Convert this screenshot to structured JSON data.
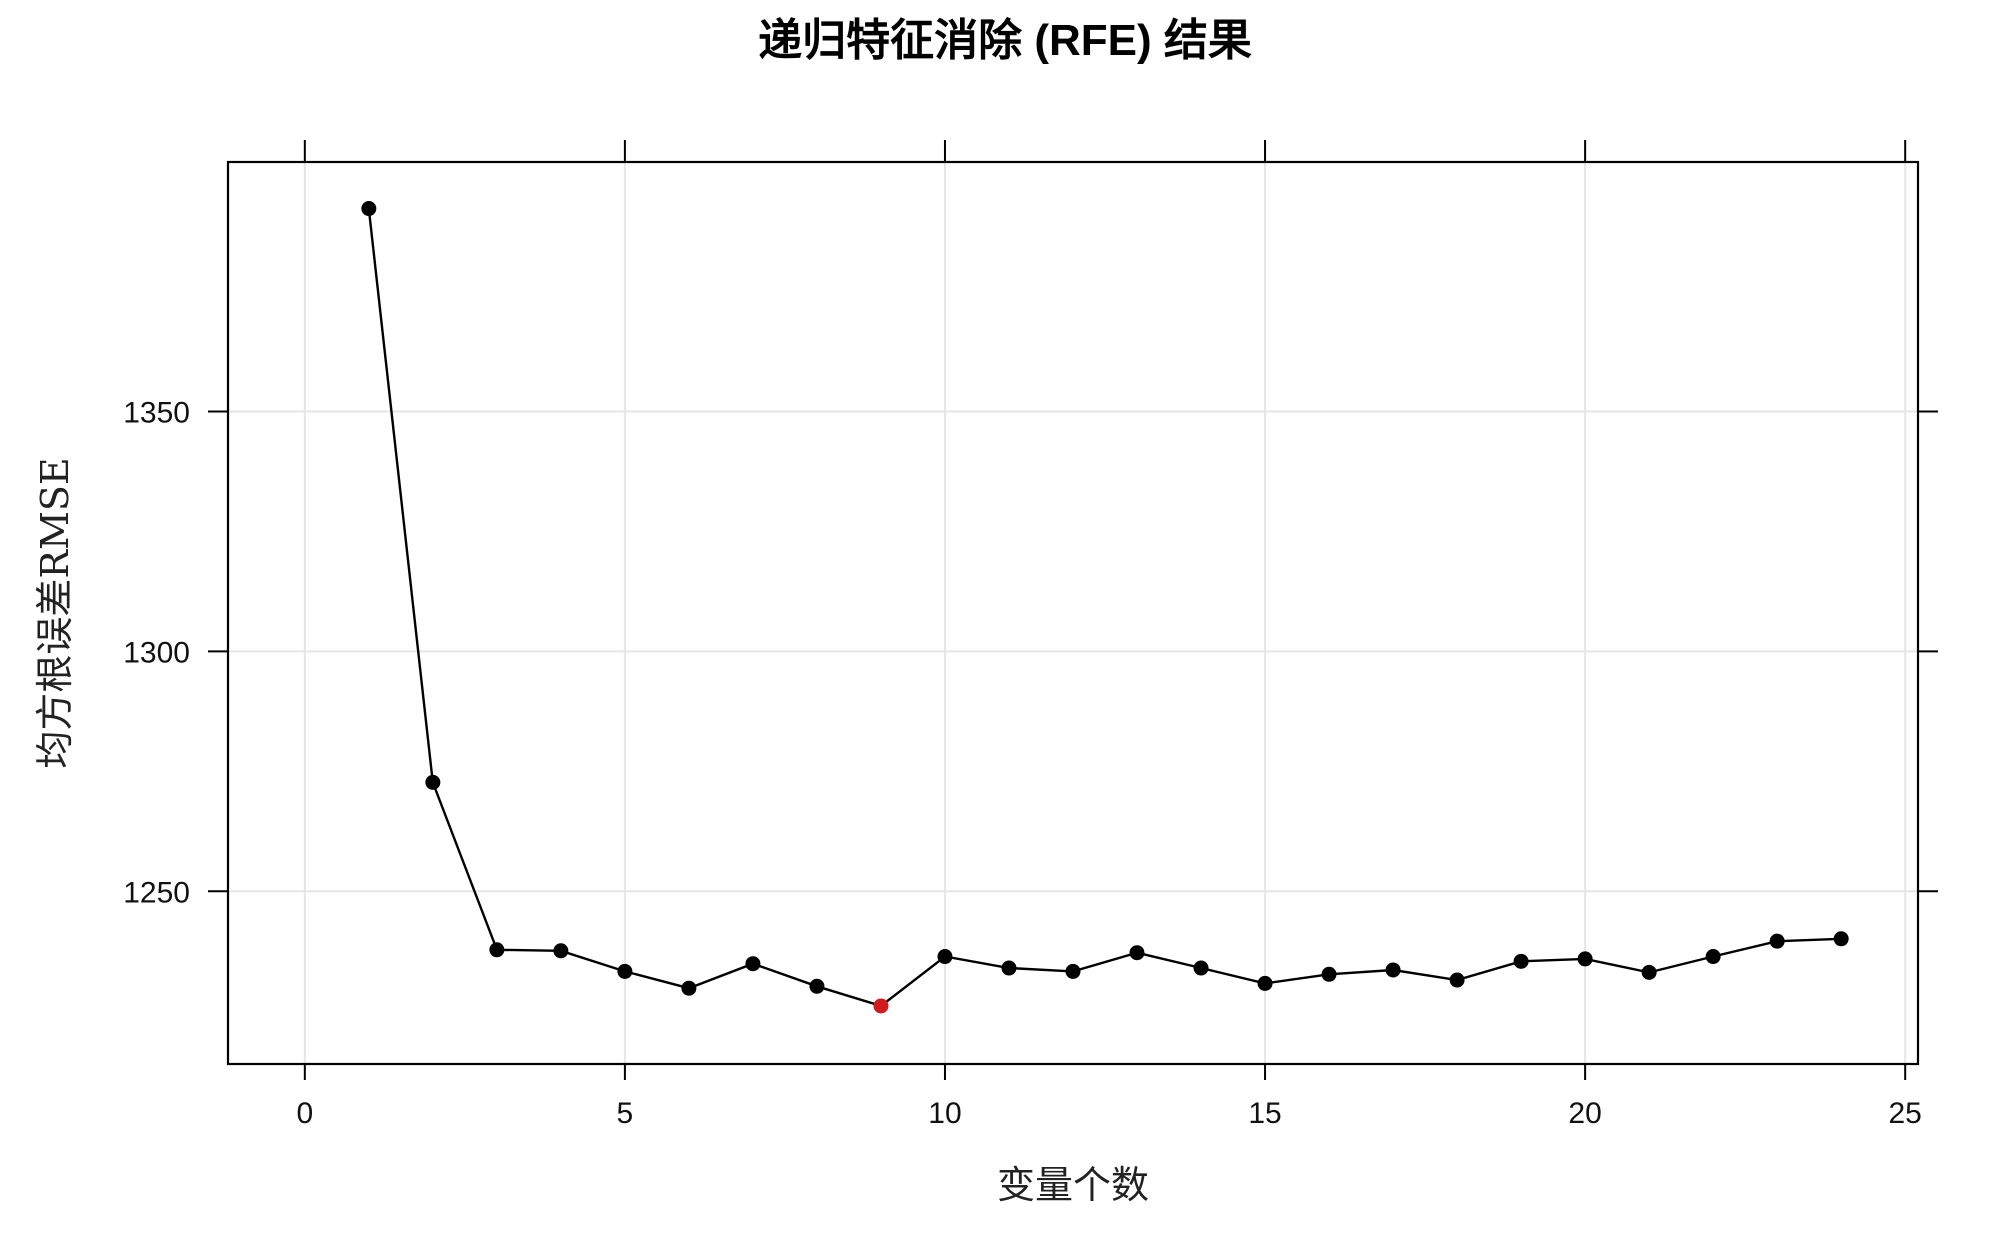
{
  "chart_data": {
    "type": "line",
    "title": "递归特征消除 (RFE) 结果",
    "xlabel": "变量个数",
    "ylabel": "均方根误差RMSE",
    "xlim": [
      -1.2,
      25.2
    ],
    "ylim": [
      1214,
      1402
    ],
    "xticks": [
      0,
      5,
      10,
      15,
      20,
      25
    ],
    "yticks": [
      1250,
      1300,
      1350
    ],
    "grid": true,
    "series": [
      {
        "x": [
          1,
          2,
          3,
          4,
          5,
          6,
          7,
          8,
          9,
          10,
          11,
          12,
          13,
          14,
          15,
          16,
          17,
          18,
          19,
          20,
          21,
          22,
          23,
          24
        ],
        "y": [
          1392.3,
          1272.7,
          1237.8,
          1237.6,
          1233.3,
          1229.8,
          1234.9,
          1230.2,
          1226.1,
          1236.4,
          1234.0,
          1233.3,
          1237.2,
          1234.0,
          1230.8,
          1232.7,
          1233.6,
          1231.5,
          1235.4,
          1235.9,
          1233.1,
          1236.4,
          1239.6,
          1240.1
        ],
        "color": "#000000"
      }
    ],
    "highlight": {
      "x": 9,
      "y": 1226.1,
      "color": "#d01c1c"
    }
  },
  "colors": {
    "grid": "#e6e6e6",
    "axis": "#000000",
    "point": "#000000",
    "highlight": "#d01c1c"
  }
}
